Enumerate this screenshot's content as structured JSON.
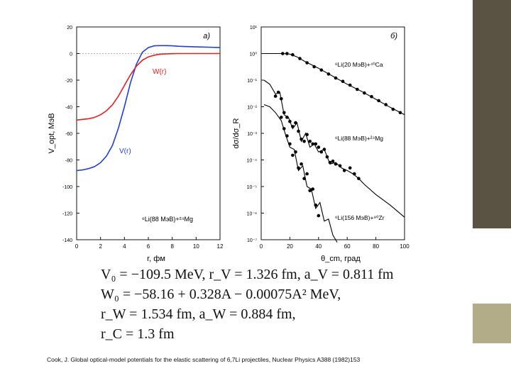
{
  "chart_data": [
    {
      "type": "line",
      "panel_label": "a)",
      "ylabel": "V_opt, МэВ",
      "xlabel": "r, фм",
      "xlim": [
        0,
        12
      ],
      "ylim": [
        -140,
        20
      ],
      "x_ticks": [
        "0",
        "2",
        "4",
        "6",
        "8",
        "10",
        "12"
      ],
      "y_ticks": [
        "20",
        "0",
        "-20",
        "-40",
        "-60",
        "-80",
        "-100",
        "-120",
        "-140"
      ],
      "series": [
        {
          "name": "V(r)",
          "color": "#1f3fd6",
          "x": [
            0,
            0.5,
            1,
            1.5,
            2,
            2.5,
            3,
            3.5,
            4,
            4.5,
            5,
            5.5,
            6,
            6.5,
            7,
            7.5,
            8,
            8.5,
            9,
            10,
            11,
            12
          ],
          "y": [
            -88,
            -87.5,
            -86.5,
            -85,
            -82,
            -77,
            -69,
            -56,
            -40,
            -22,
            -8,
            1,
            4.5,
            5.8,
            6,
            6,
            5.8,
            5.5,
            5.3,
            5,
            4.8,
            4.5
          ]
        },
        {
          "name": "W(r)",
          "color": "#e02020",
          "x": [
            0,
            0.5,
            1,
            1.5,
            2,
            2.5,
            3,
            3.5,
            4,
            4.5,
            5,
            5.5,
            6,
            6.5,
            7,
            7.5,
            8,
            8.5,
            9,
            10,
            11,
            12
          ],
          "y": [
            -50,
            -49.5,
            -49,
            -48,
            -46,
            -43,
            -38.5,
            -32,
            -24,
            -16,
            -9.5,
            -5,
            -2.5,
            -1.2,
            -0.5,
            -0.2,
            -0.1,
            0,
            0,
            0,
            0,
            0
          ]
        }
      ],
      "annotation": "⁶Li(88 МэВ)+²⁴Mg"
    },
    {
      "type": "scatter",
      "panel_label": "б)",
      "ylabel": "dσ/dσ_R",
      "xlabel": "θ_cm, град",
      "xlim": [
        0,
        100
      ],
      "ylim_log10": [
        -7,
        1
      ],
      "yscale": "log",
      "x_ticks": [
        "0",
        "20",
        "40",
        "60",
        "80",
        "100"
      ],
      "y_ticks": [
        "10¹",
        "10⁰",
        "10⁻¹",
        "10⁻²",
        "10⁻³",
        "10⁻⁴",
        "10⁻⁵",
        "10⁻⁶",
        "10⁻⁷"
      ],
      "series": [
        {
          "name": "⁶Li(20 МэВ)+⁴⁰Ca",
          "points": [
            [
              15,
              1.0
            ],
            [
              18,
              1.0
            ],
            [
              22,
              0.9
            ],
            [
              27,
              0.65
            ],
            [
              32,
              0.45
            ],
            [
              37,
              0.32
            ],
            [
              42,
              0.24
            ],
            [
              47,
              0.17
            ],
            [
              52,
              0.12
            ],
            [
              57,
              0.09
            ],
            [
              62,
              0.065
            ],
            [
              67,
              0.045
            ],
            [
              72,
              0.033
            ],
            [
              77,
              0.024
            ],
            [
              82,
              0.017
            ],
            [
              87,
              0.012
            ],
            [
              92,
              0.008
            ],
            [
              97,
              0.006
            ]
          ],
          "curve": [
            [
              2,
              1.0
            ],
            [
              15,
              1.0
            ],
            [
              20,
              0.95
            ],
            [
              25,
              0.75
            ],
            [
              30,
              0.52
            ],
            [
              40,
              0.28
            ],
            [
              50,
              0.14
            ],
            [
              60,
              0.07
            ],
            [
              70,
              0.038
            ],
            [
              80,
              0.019
            ],
            [
              90,
              0.0095
            ],
            [
              100,
              0.005
            ]
          ]
        },
        {
          "name": "⁶Li(88 МэВ)+²⁴Mg",
          "points": [
            [
              10,
              0.025
            ],
            [
              12,
              0.035
            ],
            [
              14,
              0.02
            ],
            [
              16,
              0.006
            ],
            [
              18,
              0.004
            ],
            [
              20,
              0.0028
            ],
            [
              22,
              0.0018
            ],
            [
              24,
              0.0025
            ],
            [
              26,
              0.0012
            ],
            [
              28,
              0.0006
            ],
            [
              30,
              0.0005
            ],
            [
              32,
              0.0009
            ],
            [
              34,
              0.0005
            ],
            [
              36,
              0.0004
            ],
            [
              38,
              0.0004
            ],
            [
              40,
              0.0003
            ],
            [
              42,
              0.0002
            ],
            [
              44,
              0.00025
            ],
            [
              46,
              0.00013
            ],
            [
              48,
              8e-05
            ],
            [
              50,
              9e-05
            ],
            [
              52,
              7e-05
            ],
            [
              55,
              6e-05
            ],
            [
              58,
              4e-05
            ],
            [
              62,
              5e-05
            ],
            [
              65,
              3e-05
            ],
            [
              68,
              2e-05
            ]
          ],
          "curve": [
            [
              2,
              0.1
            ],
            [
              6,
              0.07
            ],
            [
              10,
              0.03
            ],
            [
              13,
              0.035
            ],
            [
              16,
              0.005
            ],
            [
              19,
              0.004
            ],
            [
              22,
              0.0015
            ],
            [
              25,
              0.0025
            ],
            [
              28,
              0.0005
            ],
            [
              31,
              0.001
            ],
            [
              34,
              0.0003
            ],
            [
              37,
              0.0004
            ],
            [
              40,
              0.0002
            ],
            [
              44,
              0.00025
            ],
            [
              48,
              7e-05
            ],
            [
              52,
              8e-05
            ],
            [
              56,
              5e-05
            ],
            [
              60,
              4e-05
            ],
            [
              64,
              3e-05
            ],
            [
              68,
              2e-05
            ],
            [
              72,
              1.2e-05
            ],
            [
              80,
              5e-06
            ],
            [
              90,
              2e-06
            ],
            [
              100,
              7e-07
            ]
          ]
        },
        {
          "name": "⁶Li(156 МэВ)+⁹⁰Zr",
          "points": [
            [
              14,
              0.004
            ],
            [
              16,
              0.0015
            ],
            [
              18,
              0.0008
            ],
            [
              20,
              0.0004
            ],
            [
              22,
              0.00015
            ],
            [
              24,
              0.0002
            ],
            [
              26,
              5e-05
            ],
            [
              28,
              7e-05
            ],
            [
              30,
              2e-05
            ],
            [
              32,
              3e-05
            ],
            [
              34,
              7e-06
            ],
            [
              36,
              8e-06
            ],
            [
              38,
              2e-06
            ],
            [
              40,
              8e-07
            ]
          ],
          "curve": [
            [
              2,
              0.012
            ],
            [
              6,
              0.01
            ],
            [
              10,
              0.006
            ],
            [
              14,
              0.003
            ],
            [
              17,
              0.0009
            ],
            [
              20,
              0.0003
            ],
            [
              23,
              0.00025
            ],
            [
              26,
              4e-05
            ],
            [
              29,
              6e-05
            ],
            [
              32,
              1e-05
            ],
            [
              35,
              8e-06
            ],
            [
              38,
              1.5e-06
            ],
            [
              41,
              2.5e-06
            ],
            [
              44,
              5e-07
            ],
            [
              47,
              6e-07
            ],
            [
              50,
              1.5e-07
            ],
            [
              53,
              8e-08
            ]
          ]
        }
      ],
      "labels": [
        "⁶Li(20 МэВ)+⁴⁰Ca",
        "⁶Li(88 МэВ)+²⁴Mg",
        "⁶Li(156 МэВ)+⁹⁰Zr"
      ]
    }
  ],
  "formulas": [
    "V₀ = −109.5 MeV,  r_V = 1.326 fm,  a_V = 0.811 fm",
    "W₀ = −58.16 + 0.328A − 0.00075A² MeV,",
    "r_W = 1.534 fm,  a_W = 0.884 fm,",
    "r_C = 1.3 fm"
  ],
  "caption": "Cook, J. Global optical-model potentials for the elastic scattering of 6,7Li projectiles, Nuclear Physics A388 (1982)153"
}
